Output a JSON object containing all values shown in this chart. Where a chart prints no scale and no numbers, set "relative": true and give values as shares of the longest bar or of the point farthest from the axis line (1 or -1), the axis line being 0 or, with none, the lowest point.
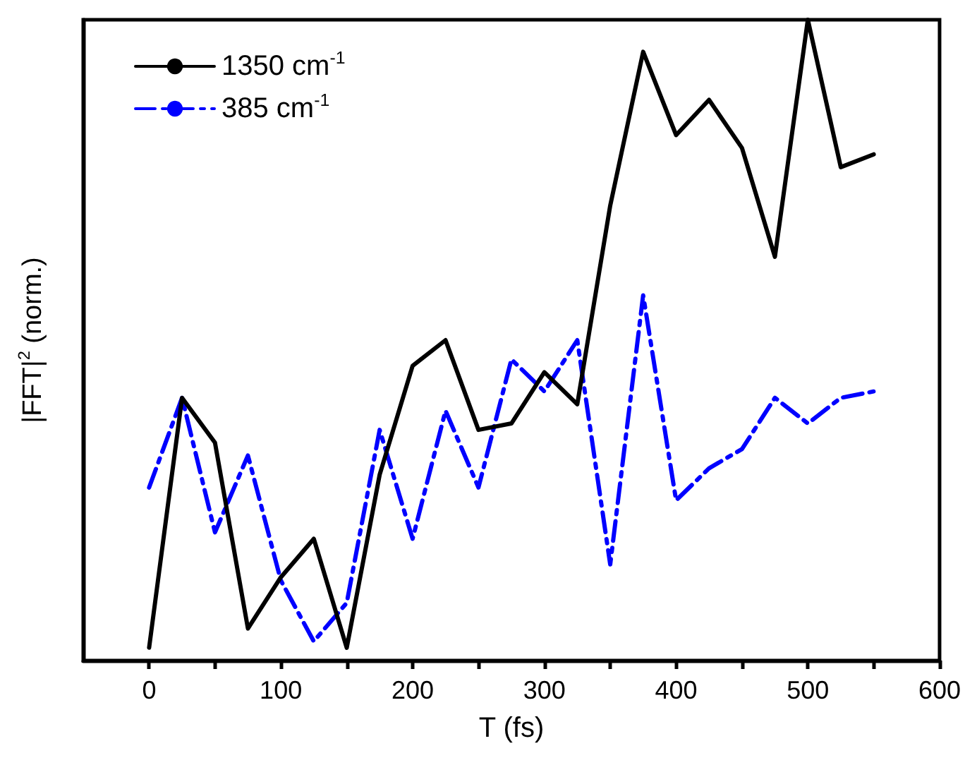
{
  "chart_data": {
    "type": "line",
    "xlabel": "T (fs)",
    "ylabel": "|FFT|$^{2}$ (norm.)",
    "relative": true,
    "x": [
      0,
      25,
      50,
      75,
      100,
      125,
      150,
      175,
      200,
      225,
      250,
      275,
      300,
      325,
      350,
      375,
      400,
      425,
      450,
      475,
      500,
      525,
      550
    ],
    "xlim": [
      -50,
      600
    ],
    "xticks": [
      0,
      {
        "value": 50,
        "label": null
      },
      100,
      {
        "value": 150,
        "label": null
      },
      200,
      {
        "value": 250,
        "label": null
      },
      300,
      {
        "value": 350,
        "label": null
      },
      400,
      {
        "value": 450,
        "label": null
      },
      500,
      {
        "value": 550,
        "label": null
      },
      600
    ],
    "legend": "top left",
    "marker": "none",
    "grid": false,
    "series": [
      {
        "name": "1350 cm$^{-1}$",
        "color": "#000000",
        "line_style": "solid",
        "values": [
          0.02,
          0.41,
          0.34,
          0.05,
          0.13,
          0.19,
          0.02,
          0.29,
          0.46,
          0.5,
          0.36,
          0.37,
          0.45,
          0.4,
          0.71,
          0.95,
          0.82,
          0.875,
          0.8,
          0.63,
          1.0,
          0.77,
          0.79
        ]
      },
      {
        "name": "385 cm$^{-1}$",
        "color": "#0000ff",
        "line_style": "dashed",
        "values": [
          0.27,
          0.41,
          0.2,
          0.32,
          0.125,
          0.03,
          0.09,
          0.36,
          0.19,
          0.39,
          0.27,
          0.47,
          0.42,
          0.5,
          0.15,
          0.57,
          0.25,
          0.3,
          0.33,
          0.41,
          0.37,
          0.41,
          0.42
        ]
      }
    ]
  }
}
